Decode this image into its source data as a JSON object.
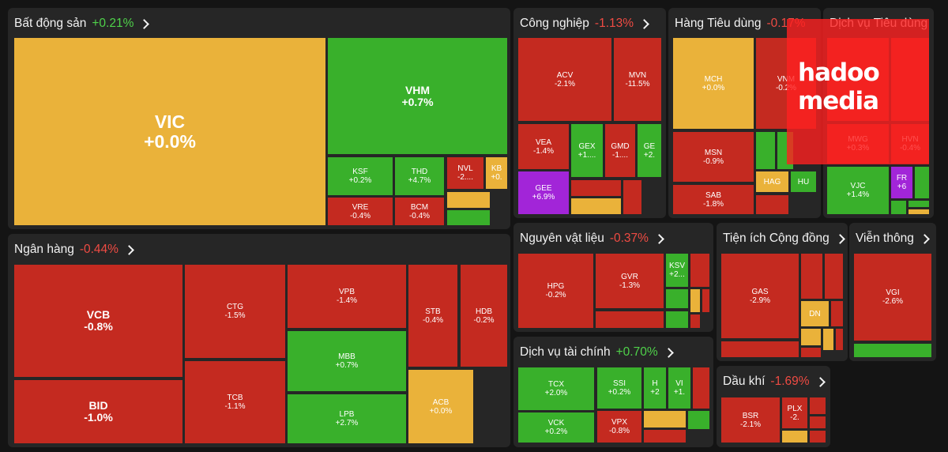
{
  "watermark": {
    "line1": "hadoo",
    "line2": "media"
  },
  "colors": {
    "down": "#c42a20",
    "up": "#39b02b",
    "flat": "#eab23a",
    "ceiling": "#a225d8",
    "panel": "#262626"
  },
  "sectors": {
    "bds": {
      "name": "Bất động sản",
      "change": "+0.21%"
    },
    "cn": {
      "name": "Công nghiệp",
      "change": "-1.13%"
    },
    "htd": {
      "name": "Hàng Tiêu dùng",
      "change": "-0.17%"
    },
    "dvtd": {
      "name": "Dịch vụ Tiêu dùng",
      "change": ""
    },
    "nh": {
      "name": "Ngân hàng",
      "change": "-0.44%"
    },
    "nvl": {
      "name": "Nguyên vật liệu",
      "change": "-0.37%"
    },
    "ti": {
      "name": "Tiện ích Cộng đồng",
      "change": ""
    },
    "vt": {
      "name": "Viễn thông",
      "change": ""
    },
    "dvtc": {
      "name": "Dịch vụ tài chính",
      "change": "+0.70%"
    },
    "dk": {
      "name": "Dầu khí",
      "change": "-1.69%"
    }
  },
  "stocks": {
    "VIC": {
      "t": "VIC",
      "c": "+0.0%"
    },
    "VHM": {
      "t": "VHM",
      "c": "+0.7%"
    },
    "KSF": {
      "t": "KSF",
      "c": "+0.2%"
    },
    "THD": {
      "t": "THD",
      "c": "+4.7%"
    },
    "NVL": {
      "t": "NVL",
      "c": "-2...."
    },
    "KB": {
      "t": "KB",
      "c": "+0."
    },
    "VRE": {
      "t": "VRE",
      "c": "-0.4%"
    },
    "BCM": {
      "t": "BCM",
      "c": "-0.4%"
    },
    "ACV": {
      "t": "ACV",
      "c": "-2.1%"
    },
    "MVN": {
      "t": "MVN",
      "c": "-11.5%"
    },
    "VEA": {
      "t": "VEA",
      "c": "-1.4%"
    },
    "GEX": {
      "t": "GEX",
      "c": "+1...."
    },
    "GMD": {
      "t": "GMD",
      "c": "-1...."
    },
    "GE": {
      "t": "GE",
      "c": "+2."
    },
    "GEE": {
      "t": "GEE",
      "c": "+6.9%"
    },
    "MCH": {
      "t": "MCH",
      "c": "+0.0%"
    },
    "VNM": {
      "t": "VNM",
      "c": "-0.2%"
    },
    "MSN": {
      "t": "MSN",
      "c": "-0.9%"
    },
    "SAB": {
      "t": "SAB",
      "c": "-1.8%"
    },
    "HAG": {
      "t": "HAG",
      "c": ""
    },
    "HU": {
      "t": "HU",
      "c": ""
    },
    "MWG": {
      "t": "MWG",
      "c": "+0.3%"
    },
    "HVN": {
      "t": "HVN",
      "c": "-0.4%"
    },
    "VJC": {
      "t": "VJC",
      "c": "+1.4%"
    },
    "FR": {
      "t": "FR",
      "c": "+6"
    },
    "VCB": {
      "t": "VCB",
      "c": "-0.8%"
    },
    "BID": {
      "t": "BID",
      "c": "-1.0%"
    },
    "CTG": {
      "t": "CTG",
      "c": "-1.5%"
    },
    "TCB": {
      "t": "TCB",
      "c": "-1.1%"
    },
    "VPB": {
      "t": "VPB",
      "c": "-1.4%"
    },
    "MBB": {
      "t": "MBB",
      "c": "+0.7%"
    },
    "LPB": {
      "t": "LPB",
      "c": "+2.7%"
    },
    "STB": {
      "t": "STB",
      "c": "-0.4%"
    },
    "HDB": {
      "t": "HDB",
      "c": "-0.2%"
    },
    "ACB": {
      "t": "ACB",
      "c": "+0.0%"
    },
    "HPG": {
      "t": "HPG",
      "c": "-0.2%"
    },
    "GVR": {
      "t": "GVR",
      "c": "-1.3%"
    },
    "KSV": {
      "t": "KSV",
      "c": "+2..."
    },
    "GAS": {
      "t": "GAS",
      "c": "-2.9%"
    },
    "DN": {
      "t": "DN",
      "c": ""
    },
    "VGI": {
      "t": "VGI",
      "c": "-2.6%"
    },
    "TCX": {
      "t": "TCX",
      "c": "+2.0%"
    },
    "SSI": {
      "t": "SSI",
      "c": "+0.2%"
    },
    "H": {
      "t": "H",
      "c": "+2"
    },
    "VI": {
      "t": "VI",
      "c": "+1."
    },
    "VCK": {
      "t": "VCK",
      "c": "+0.2%"
    },
    "VPX": {
      "t": "VPX",
      "c": "-0.8%"
    },
    "BSR": {
      "t": "BSR",
      "c": "-2.1%"
    },
    "PLX": {
      "t": "PLX",
      "c": "-2."
    }
  }
}
